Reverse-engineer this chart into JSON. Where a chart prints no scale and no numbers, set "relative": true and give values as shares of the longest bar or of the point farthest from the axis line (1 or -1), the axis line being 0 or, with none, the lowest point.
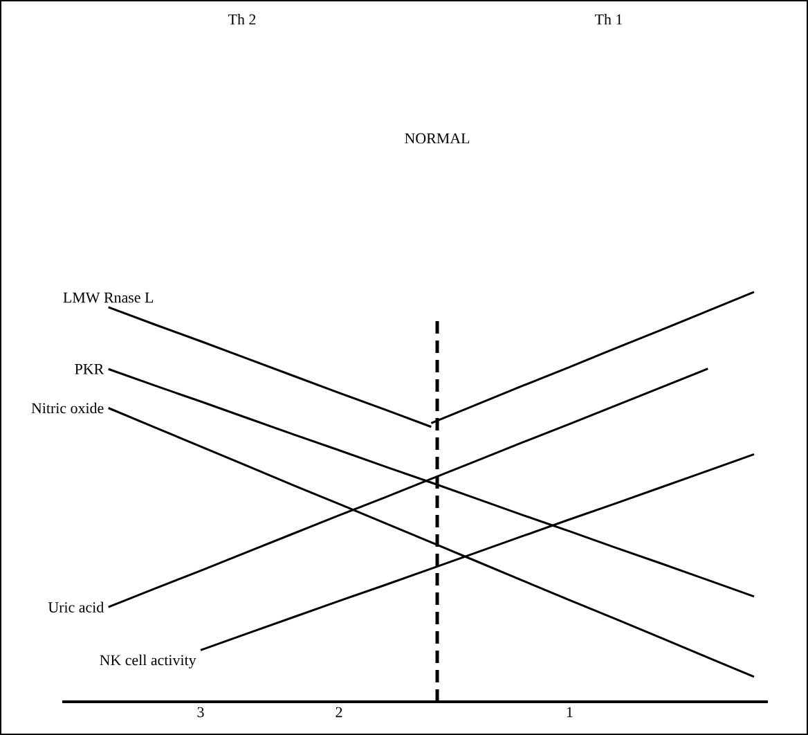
{
  "chart_data": {
    "type": "line",
    "relative": true,
    "legend": false,
    "marker": "none",
    "line_style": "solid",
    "annotations": [
      "Th 2",
      "Th 1",
      "NORMAL"
    ],
    "categories": [
      null,
      null,
      null,
      "3",
      null,
      null,
      "2",
      null,
      null,
      null,
      null,
      "1",
      null,
      null,
      null,
      null
    ],
    "series": [
      {
        "name": "LMW Rnase L",
        "color": "#000000",
        "values": [
          null,
          0.963,
          0.921,
          0.88,
          0.838,
          0.796,
          0.754,
          0.713,
          0.671,
          null,
          null,
          null,
          null,
          null,
          null,
          null
        ]
      },
      {
        "color": "#000000",
        "values": [
          null,
          null,
          null,
          null,
          null,
          null,
          null,
          null,
          0.68,
          0.726,
          0.772,
          0.817,
          0.863,
          0.908,
          0.954,
          1.0
        ]
      },
      {
        "name": "PKR",
        "color": "#000000",
        "values": [
          null,
          0.812,
          0.772,
          0.733,
          0.693,
          0.653,
          0.614,
          0.574,
          0.535,
          0.495,
          0.455,
          0.416,
          0.376,
          0.337,
          0.297,
          0.257
        ]
      },
      {
        "name": "Nitric oxide",
        "color": "#000000",
        "values": [
          null,
          0.717,
          0.67,
          0.623,
          0.576,
          0.529,
          0.483,
          0.436,
          0.389,
          0.342,
          0.295,
          0.248,
          0.202,
          0.155,
          0.108,
          0.061
        ]
      },
      {
        "name": "Uric acid",
        "color": "#000000",
        "values": [
          null,
          0.231,
          0.276,
          0.32,
          0.365,
          0.41,
          0.455,
          0.499,
          0.544,
          0.589,
          0.634,
          0.678,
          0.723,
          0.768,
          0.813,
          null
        ]
      },
      {
        "name": "NK cell activity",
        "color": "#000000",
        "values": [
          null,
          null,
          null,
          0.126,
          0.166,
          0.206,
          0.246,
          0.285,
          0.325,
          0.365,
          0.405,
          0.445,
          0.484,
          0.524,
          0.564,
          0.604
        ]
      }
    ]
  }
}
